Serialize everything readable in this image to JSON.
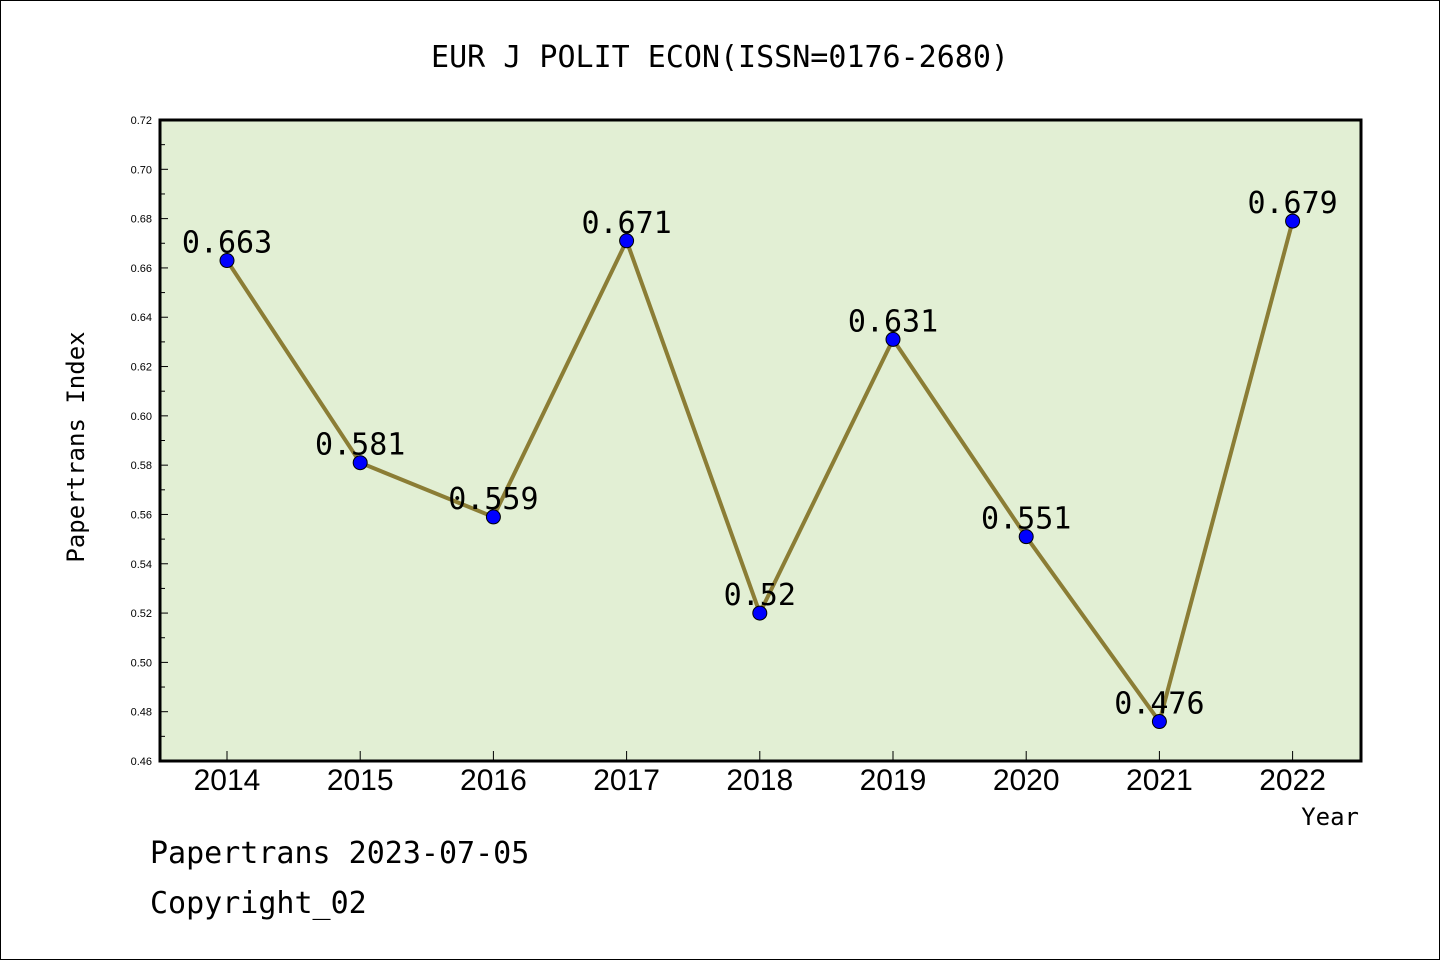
{
  "chart_data": {
    "type": "line",
    "title": "EUR J POLIT ECON(ISSN=0176-2680)",
    "xlabel": "Year",
    "ylabel": "Papertrans Index",
    "categories": [
      "2014",
      "2015",
      "2016",
      "2017",
      "2018",
      "2019",
      "2020",
      "2021",
      "2022"
    ],
    "values": [
      0.663,
      0.581,
      0.559,
      0.671,
      0.52,
      0.631,
      0.551,
      0.476,
      0.679
    ],
    "data_labels": [
      "0.663",
      "0.581",
      "0.559",
      "0.671",
      "0.52",
      "0.631",
      "0.551",
      "0.476",
      "0.679"
    ],
    "ylim": [
      0.46,
      0.72
    ],
    "yticks": [
      "0.46",
      "0.48",
      "0.50",
      "0.52",
      "0.54",
      "0.56",
      "0.58",
      "0.60",
      "0.62",
      "0.64",
      "0.66",
      "0.68",
      "0.70",
      "0.72"
    ],
    "grid": false,
    "colors": {
      "plot_background": "#e2efd4",
      "line": "#8b7d35",
      "marker": "#0000ff"
    }
  },
  "footer": {
    "line1": "Papertrans 2023-07-05",
    "line2": "Copyright_02"
  }
}
